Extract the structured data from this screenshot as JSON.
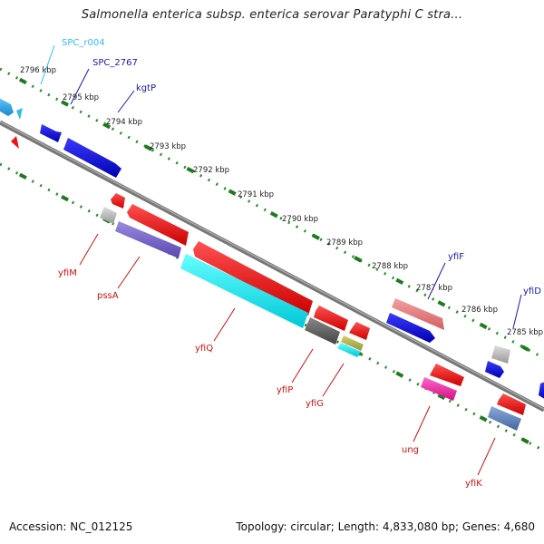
{
  "title": "Salmonella enterica subsp. enterica serovar Paratyphi C stra...",
  "footer": {
    "accession": "Accession: NC_012125",
    "topology": "Topology: circular; Length: 4,833,080 bp; Genes: 4,680"
  },
  "ticks": [
    "2796 kbp",
    "2795 kbp",
    "2794 kbp",
    "2793 kbp",
    "2792 kbp",
    "2791 kbp",
    "2790 kbp",
    "2789 kbp",
    "2788 kbp",
    "2787 kbp",
    "2786 kbp",
    "2785 kbp"
  ],
  "gene_labels_top": [
    {
      "text": "SPC_r004",
      "color": "#33bbee"
    },
    {
      "text": "SPC_2767",
      "color": "#1a1aaa"
    },
    {
      "text": "kgtP",
      "color": "#1a1aaa"
    },
    {
      "text": "yfiF",
      "color": "#1a1aaa"
    },
    {
      "text": "yfiD",
      "color": "#1a1aaa"
    }
  ],
  "gene_labels_bottom": [
    {
      "text": "yfiM",
      "color": "#cc1111"
    },
    {
      "text": "pssA",
      "color": "#cc1111"
    },
    {
      "text": "yfiQ",
      "color": "#cc1111"
    },
    {
      "text": "yfiP",
      "color": "#cc1111"
    },
    {
      "text": "yfiG",
      "color": "#cc1111"
    },
    {
      "text": "ung",
      "color": "#cc1111"
    },
    {
      "text": "yfiK",
      "color": "#cc1111"
    }
  ]
}
